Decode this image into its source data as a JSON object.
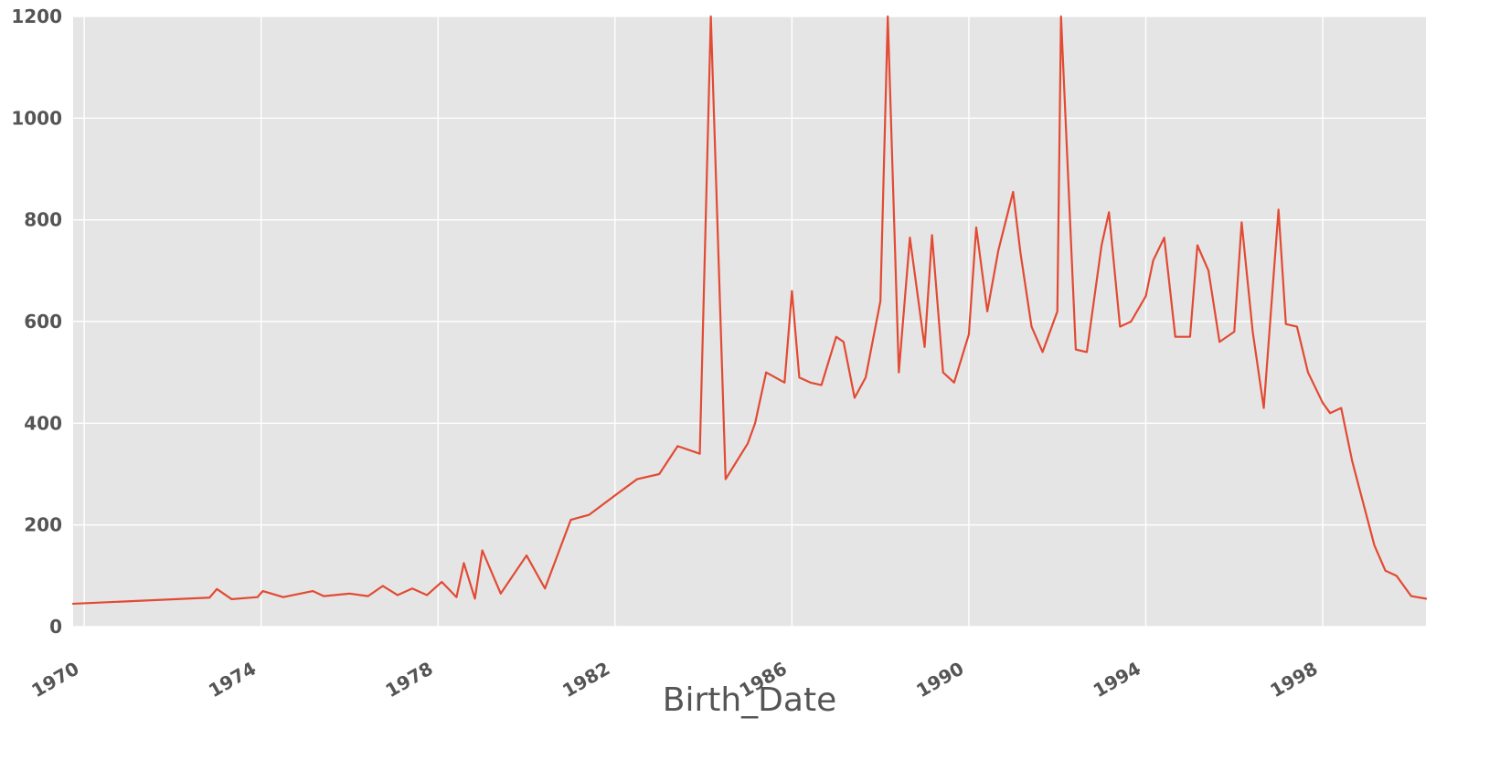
{
  "chart_data": {
    "type": "line",
    "title": "",
    "xlabel": "Birth_Date",
    "ylabel": "",
    "x_axis_type": "date",
    "xlim": [
      "1969-10-01",
      "2000-05-01"
    ],
    "ylim": [
      0,
      1200
    ],
    "x_ticks": [
      "1970",
      "1974",
      "1978",
      "1982",
      "1986",
      "1990",
      "1994",
      "1998"
    ],
    "y_ticks": [
      0,
      200,
      400,
      600,
      800,
      1000,
      1200
    ],
    "grid": true,
    "legend": "none",
    "colors": {
      "background": "#E5E5E5",
      "grid": "#FFFFFF",
      "series": "#E24A33",
      "text": "#555555"
    },
    "series": [
      {
        "points": [
          [
            "1969-10-01",
            45
          ],
          [
            "1972-11-01",
            57
          ],
          [
            "1973-01-01",
            74
          ],
          [
            "1973-05-01",
            54
          ],
          [
            "1973-12-01",
            58
          ],
          [
            "1974-01-15",
            70
          ],
          [
            "1974-07-01",
            58
          ],
          [
            "1975-03-01",
            70
          ],
          [
            "1975-06-01",
            60
          ],
          [
            "1976-01-01",
            65
          ],
          [
            "1976-06-01",
            60
          ],
          [
            "1976-10-01",
            80
          ],
          [
            "1977-02-01",
            62
          ],
          [
            "1977-06-01",
            75
          ],
          [
            "1977-10-01",
            62
          ],
          [
            "1978-02-01",
            88
          ],
          [
            "1978-06-01",
            58
          ],
          [
            "1978-08-01",
            125
          ],
          [
            "1978-11-01",
            55
          ],
          [
            "1979-01-01",
            150
          ],
          [
            "1979-06-01",
            65
          ],
          [
            "1980-01-01",
            140
          ],
          [
            "1980-06-01",
            75
          ],
          [
            "1981-01-01",
            210
          ],
          [
            "1981-06-01",
            220
          ],
          [
            "1982-01-01",
            258
          ],
          [
            "1982-07-01",
            290
          ],
          [
            "1983-01-01",
            300
          ],
          [
            "1983-06-01",
            355
          ],
          [
            "1983-12-01",
            340
          ],
          [
            "1984-03-01",
            1200
          ],
          [
            "1984-07-01",
            290
          ],
          [
            "1985-01-01",
            360
          ],
          [
            "1985-03-01",
            400
          ],
          [
            "1985-06-01",
            500
          ],
          [
            "1985-11-01",
            480
          ],
          [
            "1986-01-01",
            660
          ],
          [
            "1986-03-01",
            490
          ],
          [
            "1986-06-01",
            480
          ],
          [
            "1986-09-01",
            475
          ],
          [
            "1987-01-01",
            570
          ],
          [
            "1987-03-01",
            560
          ],
          [
            "1987-06-01",
            450
          ],
          [
            "1987-09-01",
            490
          ],
          [
            "1988-01-01",
            640
          ],
          [
            "1988-03-01",
            1200
          ],
          [
            "1988-06-01",
            500
          ],
          [
            "1988-09-01",
            765
          ],
          [
            "1989-01-01",
            550
          ],
          [
            "1989-03-01",
            770
          ],
          [
            "1989-06-01",
            500
          ],
          [
            "1989-09-01",
            480
          ],
          [
            "1990-01-01",
            575
          ],
          [
            "1990-03-01",
            785
          ],
          [
            "1990-06-01",
            620
          ],
          [
            "1990-09-01",
            740
          ],
          [
            "1991-01-01",
            855
          ],
          [
            "1991-03-01",
            735
          ],
          [
            "1991-06-01",
            590
          ],
          [
            "1991-09-01",
            540
          ],
          [
            "1992-01-01",
            620
          ],
          [
            "1992-02-01",
            1200
          ],
          [
            "1992-06-01",
            545
          ],
          [
            "1992-09-01",
            540
          ],
          [
            "1993-01-01",
            750
          ],
          [
            "1993-03-01",
            815
          ],
          [
            "1993-06-01",
            590
          ],
          [
            "1993-09-01",
            600
          ],
          [
            "1994-01-01",
            650
          ],
          [
            "1994-03-01",
            720
          ],
          [
            "1994-06-01",
            765
          ],
          [
            "1994-09-01",
            570
          ],
          [
            "1995-01-01",
            570
          ],
          [
            "1995-03-01",
            750
          ],
          [
            "1995-06-01",
            700
          ],
          [
            "1995-09-01",
            560
          ],
          [
            "1996-01-01",
            580
          ],
          [
            "1996-03-01",
            795
          ],
          [
            "1996-06-01",
            580
          ],
          [
            "1996-09-01",
            430
          ],
          [
            "1997-01-01",
            820
          ],
          [
            "1997-03-01",
            595
          ],
          [
            "1997-06-01",
            590
          ],
          [
            "1997-09-01",
            500
          ],
          [
            "1998-01-01",
            440
          ],
          [
            "1998-03-01",
            420
          ],
          [
            "1998-06-01",
            430
          ],
          [
            "1998-09-01",
            325
          ],
          [
            "1999-01-01",
            215
          ],
          [
            "1999-03-01",
            160
          ],
          [
            "1999-06-01",
            110
          ],
          [
            "1999-09-01",
            100
          ],
          [
            "2000-01-01",
            60
          ],
          [
            "2000-05-01",
            55
          ]
        ]
      }
    ]
  }
}
